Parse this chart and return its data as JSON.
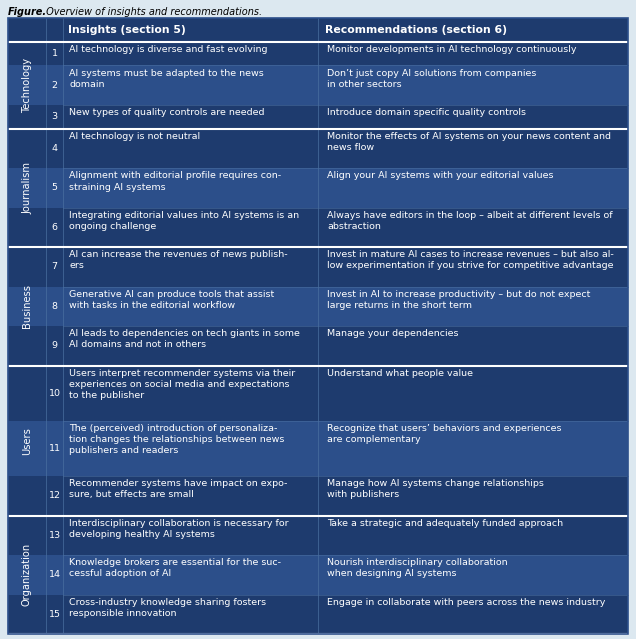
{
  "figure_label": "Figure.",
  "figure_caption": " Overview of insights and recommendations.",
  "header_col1": "Insights (section 5)",
  "header_col2": "Recommendations (section 6)",
  "header_bg": "#1e3b6e",
  "header_text_color": "#ffffff",
  "row_bg_dark": "#1e3b6e",
  "row_bg_light": "#2c4f8a",
  "row_text_color": "#ffffff",
  "section_label_color": "#ffffff",
  "outer_border_color": "#2c4f8a",
  "fig_bg": "#dce8f0",
  "table_bg": "#dce8f0",
  "divider_heavy": "#ffffff",
  "divider_light": "#4a6fa0",
  "sections": [
    {
      "name": "Technology",
      "rows": [
        {
          "num": "1",
          "insight": "AI technology is diverse and fast evolving",
          "recommendation": "Monitor developments in AI technology continuously",
          "ins_lines": 1,
          "rec_lines": 1
        },
        {
          "num": "2",
          "insight": "AI systems must be adapted to the news\ndomain",
          "recommendation": "Don’t just copy AI solutions from companies\nin other sectors",
          "ins_lines": 2,
          "rec_lines": 2
        },
        {
          "num": "3",
          "insight": "New types of quality controls are needed",
          "recommendation": "Introduce domain specific quality controls",
          "ins_lines": 1,
          "rec_lines": 1
        }
      ]
    },
    {
      "name": "Journalism",
      "rows": [
        {
          "num": "4",
          "insight": "AI technology is not neutral",
          "recommendation": "Monitor the effects of AI systems on your news content and\nnews flow",
          "ins_lines": 1,
          "rec_lines": 2
        },
        {
          "num": "5",
          "insight": "Alignment with editorial profile requires con-\nstraining AI systems",
          "recommendation": "Align your AI systems with your editorial values",
          "ins_lines": 2,
          "rec_lines": 1
        },
        {
          "num": "6",
          "insight": "Integrating editorial values into AI systems is an\nongoing challenge",
          "recommendation": "Always have editors in the loop – albeit at different levels of\nabstraction",
          "ins_lines": 2,
          "rec_lines": 2
        }
      ]
    },
    {
      "name": "Business",
      "rows": [
        {
          "num": "7",
          "insight": "AI can increase the revenues of news publish-\ners",
          "recommendation": "Invest in mature AI cases to increase revenues – but also al-\nlow experimentation if you strive for competitive advantage",
          "ins_lines": 2,
          "rec_lines": 2
        },
        {
          "num": "8",
          "insight": "Generative AI can produce tools that assist\nwith tasks in the editorial workflow",
          "recommendation": "Invest in AI to increase productivity – but do not expect\nlarge returns in the short term",
          "ins_lines": 2,
          "rec_lines": 2
        },
        {
          "num": "9",
          "insight": "AI leads to dependencies on tech giants in some\nAI domains and not in others",
          "recommendation": "Manage your dependencies",
          "ins_lines": 2,
          "rec_lines": 1
        }
      ]
    },
    {
      "name": "Users",
      "rows": [
        {
          "num": "10",
          "insight": "Users interpret recommender systems via their\nexperiences on social media and expectations\nto the publisher",
          "recommendation": "Understand what people value",
          "ins_lines": 3,
          "rec_lines": 1
        },
        {
          "num": "11",
          "insight": "The (perceived) introduction of personaliza-\ntion changes the relationships between news\npublishers and readers",
          "recommendation": "Recognize that users’ behaviors and experiences\nare complementary",
          "ins_lines": 3,
          "rec_lines": 2
        },
        {
          "num": "12",
          "insight": "Recommender systems have impact on expo-\nsure, but effects are small",
          "recommendation": "Manage how AI systems change relationships\nwith publishers",
          "ins_lines": 2,
          "rec_lines": 2
        }
      ]
    },
    {
      "name": "Organization",
      "rows": [
        {
          "num": "13",
          "insight": "Interdisciplinary collaboration is necessary for\ndeveloping healthy AI systems",
          "recommendation": "Take a strategic and adequately funded approach",
          "ins_lines": 2,
          "rec_lines": 1
        },
        {
          "num": "14",
          "insight": "Knowledge brokers are essential for the suc-\ncessful adoption of AI",
          "recommendation": "Nourish interdisciplinary collaboration\nwhen designing AI systems",
          "ins_lines": 2,
          "rec_lines": 2
        },
        {
          "num": "15",
          "insight": "Cross-industry knowledge sharing fosters\nresponsible innovation",
          "recommendation": "Engage in collaborate with peers across the news industry",
          "ins_lines": 2,
          "rec_lines": 1
        }
      ]
    }
  ],
  "fig_width": 6.36,
  "fig_height": 6.39,
  "font_size": 6.8,
  "header_font_size": 7.8,
  "caption_font_size": 7.0
}
